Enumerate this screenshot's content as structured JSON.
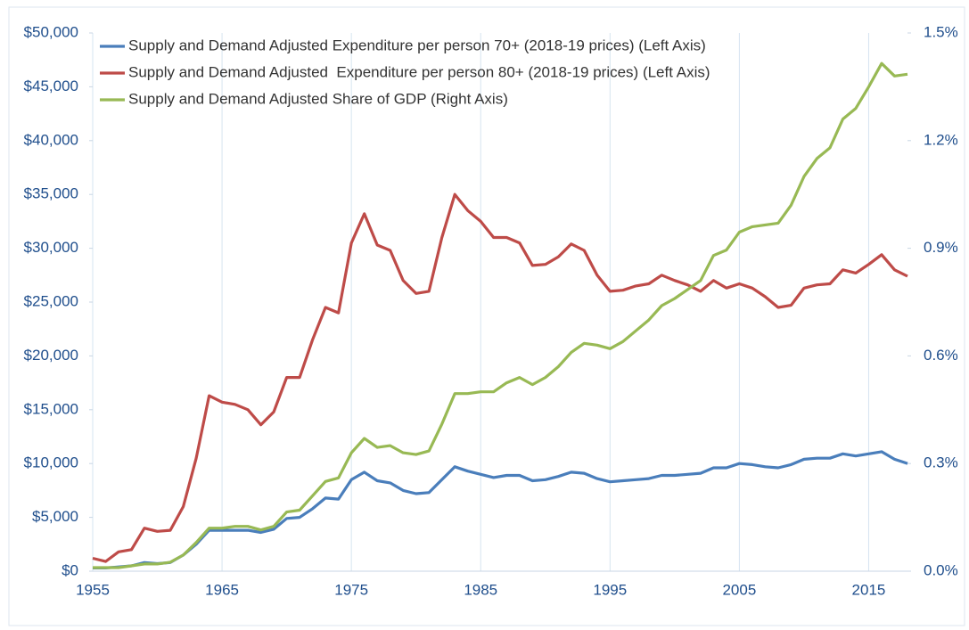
{
  "chart_data": {
    "type": "line",
    "x": [
      1955,
      1956,
      1957,
      1958,
      1959,
      1960,
      1961,
      1962,
      1963,
      1964,
      1965,
      1966,
      1967,
      1968,
      1969,
      1970,
      1971,
      1972,
      1973,
      1974,
      1975,
      1976,
      1977,
      1978,
      1979,
      1980,
      1981,
      1982,
      1983,
      1984,
      1985,
      1986,
      1987,
      1988,
      1989,
      1990,
      1991,
      1992,
      1993,
      1994,
      1995,
      1996,
      1997,
      1998,
      1999,
      2000,
      2001,
      2002,
      2003,
      2004,
      2005,
      2006,
      2007,
      2008,
      2009,
      2010,
      2011,
      2012,
      2013,
      2014,
      2015,
      2016,
      2017,
      2018
    ],
    "series": [
      {
        "name": "Supply and Demand Adjusted Expenditure per person 70+ (2018-19 prices) (Left Axis)",
        "color": "#4a7ebb",
        "values": [
          300,
          300,
          400,
          500,
          800,
          700,
          800,
          1500,
          2500,
          3800,
          3800,
          3800,
          3800,
          3600,
          3900,
          4900,
          5000,
          5800,
          6800,
          6700,
          8500,
          9200,
          8400,
          8200,
          7500,
          7200,
          7300,
          8500,
          9700,
          9300,
          9000,
          8700,
          8900,
          8900,
          8400,
          8500,
          8800,
          9200,
          9100,
          8600,
          8300,
          8400,
          8500,
          8600,
          8900,
          8900,
          9000,
          9100,
          9600,
          9600,
          10000,
          9900,
          9700,
          9600,
          9900,
          10400,
          10500,
          10500,
          10900,
          10700,
          10900,
          11100,
          10400,
          10000
        ]
      },
      {
        "name": "Supply and Demand Adjusted  Expenditure per person 80+ (2018-19 prices) (Left Axis)",
        "color": "#be4b48",
        "values": [
          1200,
          900,
          1800,
          2000,
          4000,
          3700,
          3800,
          6000,
          10500,
          16300,
          15700,
          15500,
          15000,
          13600,
          14800,
          18000,
          18000,
          21500,
          24500,
          24000,
          30500,
          33200,
          30300,
          29800,
          27000,
          25800,
          26000,
          31000,
          35000,
          33500,
          32500,
          31000,
          31000,
          30500,
          28400,
          28500,
          29200,
          30400,
          29800,
          27500,
          26000,
          26100,
          26500,
          26700,
          27500,
          27000,
          26600,
          26000,
          27000,
          26300,
          26700,
          26300,
          25500,
          24500,
          24700,
          26300,
          26600,
          26700,
          28000,
          27700,
          28500,
          29400,
          28000,
          27400
        ]
      },
      {
        "name": "Supply and Demand Adjusted Share of GDP (Right Axis)",
        "color": "#98b954",
        "axis": "y2",
        "values": [
          0.01,
          0.01,
          0.01,
          0.015,
          0.02,
          0.02,
          0.025,
          0.045,
          0.08,
          0.12,
          0.12,
          0.125,
          0.125,
          0.115,
          0.125,
          0.165,
          0.17,
          0.21,
          0.25,
          0.26,
          0.33,
          0.37,
          0.345,
          0.35,
          0.33,
          0.325,
          0.335,
          0.41,
          0.495,
          0.495,
          0.5,
          0.5,
          0.525,
          0.54,
          0.52,
          0.54,
          0.57,
          0.61,
          0.635,
          0.63,
          0.62,
          0.64,
          0.67,
          0.7,
          0.74,
          0.76,
          0.785,
          0.81,
          0.88,
          0.895,
          0.945,
          0.96,
          0.965,
          0.97,
          1.02,
          1.1,
          1.15,
          1.18,
          1.26,
          1.29,
          1.35,
          1.415,
          1.38,
          1.385
        ]
      }
    ],
    "xlim": [
      1955,
      2018
    ],
    "xticks": [
      1955,
      1965,
      1975,
      1985,
      1995,
      2005,
      2015
    ],
    "ylim": [
      0,
      50000
    ],
    "yticks": [
      {
        "value": 0,
        "label": "$0"
      },
      {
        "value": 5000,
        "label": "$5,000"
      },
      {
        "value": 10000,
        "label": "$10,000"
      },
      {
        "value": 15000,
        "label": "$15,000"
      },
      {
        "value": 20000,
        "label": "$20,000"
      },
      {
        "value": 25000,
        "label": "$25,000"
      },
      {
        "value": 30000,
        "label": "$30,000"
      },
      {
        "value": 35000,
        "label": "$35,000"
      },
      {
        "value": 40000,
        "label": "$40,000"
      },
      {
        "value": 45000,
        "label": "$45,000"
      },
      {
        "value": 50000,
        "label": "$50,000"
      }
    ],
    "y2lim": [
      0,
      1.5
    ],
    "y2ticks": [
      {
        "value": 0,
        "label": "0.0%"
      },
      {
        "value": 0.3,
        "label": "0.3%"
      },
      {
        "value": 0.6,
        "label": "0.6%"
      },
      {
        "value": 0.9,
        "label": "0.9%"
      },
      {
        "value": 1.2,
        "label": "1.2%"
      },
      {
        "value": 1.5,
        "label": "1.5%"
      }
    ],
    "grid": true,
    "legend": "top-left"
  }
}
